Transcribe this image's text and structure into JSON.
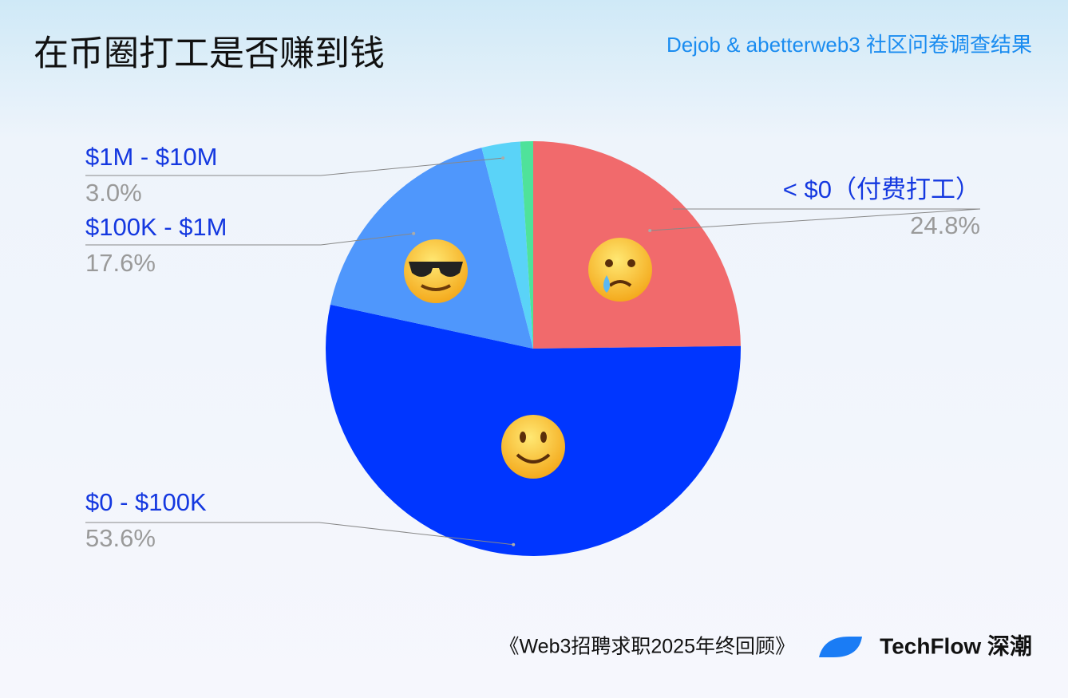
{
  "chart_data": {
    "type": "pie",
    "title": "在币圈打工是否赚到钱",
    "subtitle": "Dejob & abetterweb3 社区问卷调查结果",
    "categories": [
      "< $0（付费打工）",
      "$0 - $100K",
      "$100K - $1M",
      "$1M - $10M",
      null
    ],
    "values": [
      24.8,
      53.6,
      17.6,
      3.0,
      1.0
    ],
    "value_labels": [
      "24.8%",
      "53.6%",
      "17.6%",
      "3.0%",
      null
    ],
    "colors": [
      "#f16a6c",
      "#0036ff",
      "#4f97fc",
      "#5ad3f8",
      "#4fe29a"
    ]
  },
  "footer": {
    "source": "《Web3招聘求职2025年终回顾》",
    "brand": "TechFlow 深潮"
  }
}
